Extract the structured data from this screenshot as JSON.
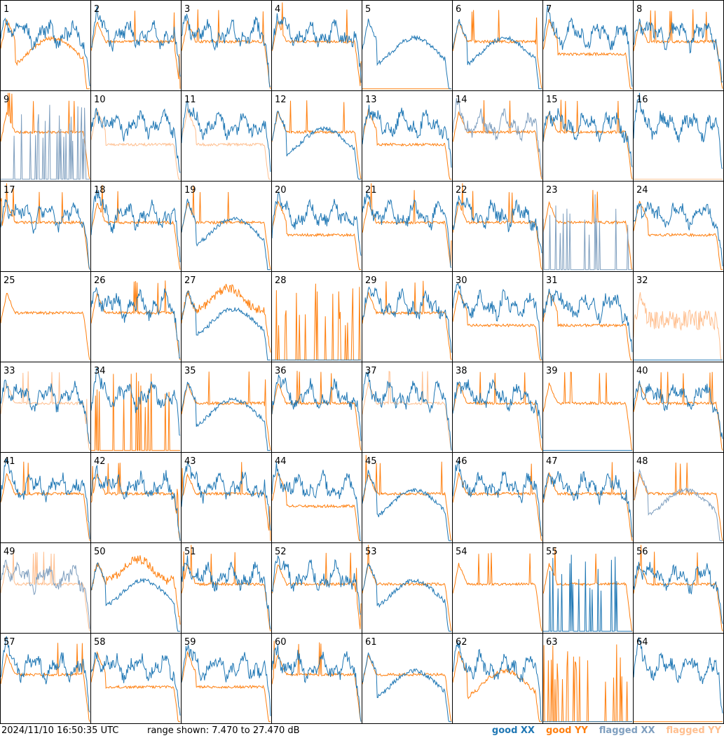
{
  "footer": {
    "timestamp": "2024/11/10 16:50:35 UTC",
    "range_text": "range shown: 7.470 to 27.470 dB"
  },
  "legend": [
    {
      "label": "good XX",
      "color": "#1f77b4"
    },
    {
      "label": "good YY",
      "color": "#ff7f0e"
    },
    {
      "label": "flagged XX",
      "color": "#7f9fbf"
    },
    {
      "label": "flagged YY",
      "color": "#ffbf8f"
    }
  ],
  "chart_data": {
    "type": "line",
    "layout": "8x8 small multiples",
    "y_unit": "dB",
    "ylim": [
      7.47,
      27.47
    ],
    "grid": false,
    "legend_placement": "bottom-right",
    "series_names": [
      "good XX",
      "good YY",
      "flagged XX",
      "flagged YY"
    ],
    "panels": [
      {
        "id": "1",
        "xx": "good",
        "yy": "good",
        "xx_shape": "ripple",
        "yy_shape": "dip"
      },
      {
        "id": "2",
        "xx": "good",
        "yy": "good",
        "xx_shape": "ripple",
        "yy_shape": "flat"
      },
      {
        "id": "3",
        "xx": "good",
        "yy": "good",
        "xx_shape": "ripple",
        "yy_shape": "flat"
      },
      {
        "id": "4",
        "xx": "good",
        "yy": "good",
        "xx_shape": "ripple",
        "yy_shape": "flat"
      },
      {
        "id": "5",
        "xx": "good",
        "yy": "good",
        "xx_shape": "dip",
        "yy_shape": "dead"
      },
      {
        "id": "6",
        "xx": "good",
        "yy": "good",
        "xx_shape": "dip",
        "yy_shape": "flat"
      },
      {
        "id": "7",
        "xx": "good",
        "yy": "good",
        "xx_shape": "ripple",
        "yy_shape": "low"
      },
      {
        "id": "8",
        "xx": "good",
        "yy": "good",
        "xx_shape": "ripple",
        "yy_shape": "flat"
      },
      {
        "id": "9",
        "xx": "flagged",
        "yy": "good",
        "xx_shape": "spiky",
        "yy_shape": "flat"
      },
      {
        "id": "10",
        "xx": "good",
        "yy": "flagged",
        "xx_shape": "ripple",
        "yy_shape": "low"
      },
      {
        "id": "11",
        "xx": "good",
        "yy": "flagged",
        "xx_shape": "ripple",
        "yy_shape": "low"
      },
      {
        "id": "12",
        "xx": "good",
        "yy": "good",
        "xx_shape": "dip",
        "yy_shape": "flat"
      },
      {
        "id": "13",
        "xx": "good",
        "yy": "good",
        "xx_shape": "ripple",
        "yy_shape": "low"
      },
      {
        "id": "14",
        "xx": "flagged",
        "yy": "good",
        "xx_shape": "ripple",
        "yy_shape": "flat"
      },
      {
        "id": "15",
        "xx": "good",
        "yy": "good",
        "xx_shape": "ripple",
        "yy_shape": "flat"
      },
      {
        "id": "16",
        "xx": "good",
        "yy": "flagged",
        "xx_shape": "ripple",
        "yy_shape": "dead"
      },
      {
        "id": "17",
        "xx": "good",
        "yy": "good",
        "xx_shape": "ripple",
        "yy_shape": "flat"
      },
      {
        "id": "18",
        "xx": "good",
        "yy": "good",
        "xx_shape": "ripple",
        "yy_shape": "flat"
      },
      {
        "id": "19",
        "xx": "good",
        "yy": "good",
        "xx_shape": "dip",
        "yy_shape": "flat"
      },
      {
        "id": "20",
        "xx": "good",
        "yy": "good",
        "xx_shape": "ripple",
        "yy_shape": "low"
      },
      {
        "id": "21",
        "xx": "good",
        "yy": "good",
        "xx_shape": "ripple",
        "yy_shape": "flat"
      },
      {
        "id": "22",
        "xx": "good",
        "yy": "good",
        "xx_shape": "ripple",
        "yy_shape": "flat"
      },
      {
        "id": "23",
        "xx": "flagged",
        "yy": "good",
        "xx_shape": "spiky",
        "yy_shape": "flat"
      },
      {
        "id": "24",
        "xx": "good",
        "yy": "good",
        "xx_shape": "ripple",
        "yy_shape": "low"
      },
      {
        "id": "25",
        "xx": "good",
        "yy": "good",
        "xx_shape": "hidden",
        "yy_shape": "flat"
      },
      {
        "id": "26",
        "xx": "good",
        "yy": "good",
        "xx_shape": "ripple",
        "yy_shape": "flat"
      },
      {
        "id": "27",
        "xx": "good",
        "yy": "good",
        "xx_shape": "dip",
        "yy_shape": "high"
      },
      {
        "id": "28",
        "xx": "good",
        "yy": "good",
        "xx_shape": "dead",
        "yy_shape": "spiky"
      },
      {
        "id": "29",
        "xx": "good",
        "yy": "good",
        "xx_shape": "ripple",
        "yy_shape": "flat"
      },
      {
        "id": "30",
        "xx": "good",
        "yy": "good",
        "xx_shape": "ripple",
        "yy_shape": "low"
      },
      {
        "id": "31",
        "xx": "good",
        "yy": "good",
        "xx_shape": "ripple",
        "yy_shape": "low"
      },
      {
        "id": "32",
        "xx": "good",
        "yy": "flagged",
        "xx_shape": "dead",
        "yy_shape": "noisy"
      },
      {
        "id": "33",
        "xx": "good",
        "yy": "flagged",
        "xx_shape": "ripple",
        "yy_shape": "flat"
      },
      {
        "id": "34",
        "xx": "good",
        "yy": "good",
        "xx_shape": "ripple",
        "yy_shape": "spiky"
      },
      {
        "id": "35",
        "xx": "good",
        "yy": "good",
        "xx_shape": "dip",
        "yy_shape": "flat"
      },
      {
        "id": "36",
        "xx": "good",
        "yy": "good",
        "xx_shape": "ripple",
        "yy_shape": "flat"
      },
      {
        "id": "37",
        "xx": "good",
        "yy": "flagged",
        "xx_shape": "ripple",
        "yy_shape": "flat"
      },
      {
        "id": "38",
        "xx": "good",
        "yy": "good",
        "xx_shape": "ripple",
        "yy_shape": "flat"
      },
      {
        "id": "39",
        "xx": "good",
        "yy": "good",
        "xx_shape": "dead",
        "yy_shape": "flat"
      },
      {
        "id": "40",
        "xx": "good",
        "yy": "good",
        "xx_shape": "ripple",
        "yy_shape": "flat"
      },
      {
        "id": "41",
        "xx": "good",
        "yy": "good",
        "xx_shape": "ripple",
        "yy_shape": "flat"
      },
      {
        "id": "42",
        "xx": "good",
        "yy": "good",
        "xx_shape": "ripple",
        "yy_shape": "flat"
      },
      {
        "id": "43",
        "xx": "good",
        "yy": "good",
        "xx_shape": "ripple",
        "yy_shape": "flat"
      },
      {
        "id": "44",
        "xx": "good",
        "yy": "good",
        "xx_shape": "ripple",
        "yy_shape": "low"
      },
      {
        "id": "45",
        "xx": "good",
        "yy": "good",
        "xx_shape": "dip",
        "yy_shape": "flat"
      },
      {
        "id": "46",
        "xx": "good",
        "yy": "good",
        "xx_shape": "ripple",
        "yy_shape": "flat"
      },
      {
        "id": "47",
        "xx": "good",
        "yy": "good",
        "xx_shape": "ripple",
        "yy_shape": "flat"
      },
      {
        "id": "48",
        "xx": "flagged",
        "yy": "good",
        "xx_shape": "dip",
        "yy_shape": "flat"
      },
      {
        "id": "49",
        "xx": "flagged",
        "yy": "flagged",
        "xx_shape": "ripple",
        "yy_shape": "flat"
      },
      {
        "id": "50",
        "xx": "good",
        "yy": "good",
        "xx_shape": "dip",
        "yy_shape": "high"
      },
      {
        "id": "51",
        "xx": "good",
        "yy": "good",
        "xx_shape": "ripple",
        "yy_shape": "flat"
      },
      {
        "id": "52",
        "xx": "good",
        "yy": "good",
        "xx_shape": "ripple",
        "yy_shape": "flat"
      },
      {
        "id": "53",
        "xx": "good",
        "yy": "good",
        "xx_shape": "dip",
        "yy_shape": "flat"
      },
      {
        "id": "54",
        "xx": "good",
        "yy": "good",
        "xx_shape": "hidden",
        "yy_shape": "flat"
      },
      {
        "id": "55",
        "xx": "good",
        "yy": "good",
        "xx_shape": "spiky",
        "yy_shape": "flat"
      },
      {
        "id": "56",
        "xx": "good",
        "yy": "good",
        "xx_shape": "ripple",
        "yy_shape": "flat"
      },
      {
        "id": "57",
        "xx": "good",
        "yy": "good",
        "xx_shape": "ripple",
        "yy_shape": "flat"
      },
      {
        "id": "58",
        "xx": "good",
        "yy": "good",
        "xx_shape": "ripple",
        "yy_shape": "low"
      },
      {
        "id": "59",
        "xx": "good",
        "yy": "good",
        "xx_shape": "ripple",
        "yy_shape": "low"
      },
      {
        "id": "60",
        "xx": "good",
        "yy": "good",
        "xx_shape": "ripple",
        "yy_shape": "flat"
      },
      {
        "id": "61",
        "xx": "good",
        "yy": "good",
        "xx_shape": "dip",
        "yy_shape": "flat"
      },
      {
        "id": "62",
        "xx": "good",
        "yy": "good",
        "xx_shape": "ripple",
        "yy_shape": "dip"
      },
      {
        "id": "63",
        "xx": "good",
        "yy": "good",
        "xx_shape": "dead",
        "yy_shape": "spiky"
      },
      {
        "id": "64",
        "xx": "good",
        "yy": "good",
        "xx_shape": "ripple",
        "yy_shape": "dead"
      }
    ]
  }
}
